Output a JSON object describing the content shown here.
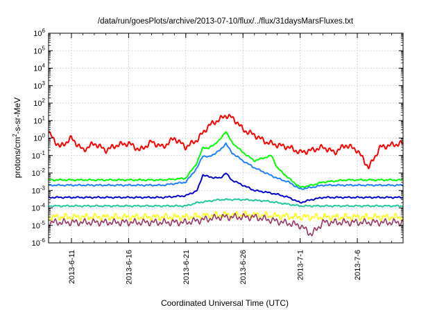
{
  "chart_data": {
    "type": "line",
    "title": "/data/run/goesPlots/archive/2013-07-10/flux/../flux/31daysMarsFluxes.txt",
    "xlabel": "Coordinated Universal Time (UTC)",
    "ylabel": "protons/cm2-s-sr-MeV",
    "ylabel_parts": {
      "pre": "protons/cm",
      "sup": "2",
      "post": "-s-sr-MeV"
    },
    "yscale": "log",
    "ylim": [
      1e-06,
      1000000.0
    ],
    "xlim": [
      "2013-06-09",
      "2013-07-10"
    ],
    "ytick_exponents": [
      -6,
      -5,
      -4,
      -3,
      -2,
      -1,
      0,
      1,
      2,
      3,
      4,
      5,
      6
    ],
    "ytick_base": "10",
    "xtick_labels": [
      "2013-6-11",
      "2013-6-16",
      "2013-6-21",
      "2013-6-26",
      "2013-7-1",
      "2013-7-6"
    ],
    "xtick_dates": [
      "2013-06-11",
      "2013-06-16",
      "2013-06-21",
      "2013-06-26",
      "2013-07-01",
      "2013-07-06"
    ],
    "grid": true,
    "legend": "none",
    "series": [
      {
        "color": "#ff0000",
        "x": [
          "2013-06-09",
          "2013-06-10",
          "2013-06-11",
          "2013-06-12",
          "2013-06-13",
          "2013-06-14",
          "2013-06-15",
          "2013-06-16",
          "2013-06-17",
          "2013-06-18",
          "2013-06-19",
          "2013-06-20",
          "2013-06-21",
          "2013-06-22",
          "2013-06-22T12",
          "2013-06-23",
          "2013-06-23T12",
          "2013-06-24",
          "2013-06-24T12",
          "2013-06-25",
          "2013-06-25T12",
          "2013-06-26",
          "2013-06-27",
          "2013-06-28",
          "2013-06-29",
          "2013-06-30",
          "2013-07-01",
          "2013-07-02",
          "2013-07-03",
          "2013-07-04",
          "2013-07-05",
          "2013-07-06",
          "2013-07-07",
          "2013-07-08",
          "2013-07-09",
          "2013-07-10"
        ],
        "values": [
          2.0,
          0.3,
          1.0,
          0.2,
          0.5,
          0.2,
          0.4,
          0.5,
          0.2,
          0.6,
          0.3,
          1.0,
          0.3,
          0.8,
          2.0,
          5.0,
          8.0,
          12.0,
          20.0,
          15.0,
          8.0,
          3.0,
          1.5,
          0.6,
          0.4,
          0.3,
          0.15,
          0.2,
          0.3,
          0.15,
          0.4,
          0.2,
          0.02,
          0.3,
          0.4,
          0.5
        ]
      },
      {
        "color": "#00ff00",
        "x": [
          "2013-06-09",
          "2013-06-11",
          "2013-06-13",
          "2013-06-15",
          "2013-06-17",
          "2013-06-19",
          "2013-06-21",
          "2013-06-22",
          "2013-06-22T12",
          "2013-06-23",
          "2013-06-24",
          "2013-06-24T12",
          "2013-06-25",
          "2013-06-26",
          "2013-06-27",
          "2013-06-28",
          "2013-06-28T12",
          "2013-06-29",
          "2013-06-30",
          "2013-07-01",
          "2013-07-02",
          "2013-07-03",
          "2013-07-05",
          "2013-07-07",
          "2013-07-10"
        ],
        "values": [
          0.004,
          0.004,
          0.004,
          0.004,
          0.004,
          0.004,
          0.005,
          0.04,
          0.3,
          0.25,
          0.8,
          2.5,
          0.6,
          0.15,
          0.05,
          0.08,
          0.1,
          0.02,
          0.005,
          0.0015,
          0.002,
          0.003,
          0.004,
          0.004,
          0.004
        ]
      },
      {
        "color": "#1e7fff",
        "x": [
          "2013-06-09",
          "2013-06-11",
          "2013-06-13",
          "2013-06-15",
          "2013-06-17",
          "2013-06-19",
          "2013-06-21",
          "2013-06-22",
          "2013-06-22T12",
          "2013-06-23",
          "2013-06-24",
          "2013-06-24T12",
          "2013-06-25",
          "2013-06-26",
          "2013-06-27",
          "2013-06-28",
          "2013-06-29",
          "2013-06-30",
          "2013-07-01",
          "2013-07-02",
          "2013-07-03",
          "2013-07-05",
          "2013-07-07",
          "2013-07-10"
        ],
        "values": [
          0.002,
          0.002,
          0.002,
          0.002,
          0.002,
          0.002,
          0.003,
          0.02,
          0.1,
          0.08,
          0.2,
          0.5,
          0.15,
          0.05,
          0.02,
          0.01,
          0.005,
          0.003,
          0.0012,
          0.0015,
          0.002,
          0.002,
          0.002,
          0.002
        ]
      },
      {
        "color": "#0000cc",
        "x": [
          "2013-06-09",
          "2013-06-11",
          "2013-06-13",
          "2013-06-15",
          "2013-06-17",
          "2013-06-19",
          "2013-06-21",
          "2013-06-22",
          "2013-06-22T12",
          "2013-06-23",
          "2013-06-24",
          "2013-06-24T12",
          "2013-06-25",
          "2013-06-26",
          "2013-06-27",
          "2013-06-28",
          "2013-06-29",
          "2013-06-30",
          "2013-07-01",
          "2013-07-02",
          "2013-07-03",
          "2013-07-05",
          "2013-07-07",
          "2013-07-10"
        ],
        "values": [
          0.0004,
          0.0004,
          0.0004,
          0.0004,
          0.0004,
          0.0004,
          0.0005,
          0.001,
          0.008,
          0.006,
          0.005,
          0.01,
          0.004,
          0.002,
          0.001,
          0.0008,
          0.0006,
          0.0004,
          0.0002,
          0.0003,
          0.0004,
          0.0004,
          0.0004,
          0.0004
        ]
      },
      {
        "color": "#20c8a0",
        "x": [
          "2013-06-09",
          "2013-06-13",
          "2013-06-17",
          "2013-06-21",
          "2013-06-22",
          "2013-06-24",
          "2013-06-26",
          "2013-06-28",
          "2013-07-01",
          "2013-07-03",
          "2013-07-06",
          "2013-07-10"
        ],
        "values": [
          0.00013,
          0.00013,
          0.00013,
          0.00013,
          0.0002,
          0.0003,
          0.0003,
          0.00025,
          0.00013,
          0.00013,
          0.00013,
          0.00013
        ]
      },
      {
        "color": "#ffff00",
        "x": [
          "2013-06-09",
          "2013-06-13",
          "2013-06-17",
          "2013-06-21",
          "2013-06-24",
          "2013-06-27",
          "2013-07-01",
          "2013-07-05",
          "2013-07-10"
        ],
        "values": [
          3e-05,
          3e-05,
          3e-05,
          3e-05,
          4e-05,
          4e-05,
          3e-05,
          3e-05,
          3e-05
        ]
      },
      {
        "color": "#993366",
        "x": [
          "2013-06-09",
          "2013-06-13",
          "2013-06-17",
          "2013-06-21",
          "2013-06-24",
          "2013-06-27",
          "2013-07-01",
          "2013-07-02",
          "2013-07-03",
          "2013-07-05",
          "2013-07-10"
        ],
        "values": [
          1.5e-05,
          1.5e-05,
          1.5e-05,
          1.5e-05,
          3e-05,
          3e-05,
          1e-05,
          3e-06,
          1.5e-05,
          1.5e-05,
          1.5e-05
        ]
      }
    ]
  }
}
